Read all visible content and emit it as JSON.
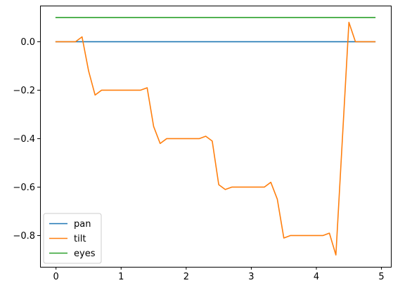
{
  "chart_data": {
    "type": "line",
    "title": "",
    "xlabel": "",
    "ylabel": "",
    "xlim": [
      -0.245,
      5.145
    ],
    "ylim": [
      -0.929,
      0.149
    ],
    "xticks": [
      0,
      1,
      2,
      3,
      4,
      5
    ],
    "xtick_labels": [
      "0",
      "1",
      "2",
      "3",
      "4",
      "5"
    ],
    "yticks": [
      0.0,
      -0.2,
      -0.4,
      -0.6,
      -0.8
    ],
    "ytick_labels": [
      "0.0",
      "−0.2",
      "−0.4",
      "−0.6",
      "−0.8"
    ],
    "grid": false,
    "legend_position": "lower-left",
    "x": [
      0.0,
      0.1,
      0.2,
      0.3,
      0.4,
      0.5,
      0.6,
      0.7,
      0.8,
      0.9,
      1.0,
      1.1,
      1.2,
      1.3,
      1.4,
      1.5,
      1.6,
      1.7,
      1.8,
      1.9,
      2.0,
      2.1,
      2.2,
      2.3,
      2.4,
      2.5,
      2.6,
      2.7,
      2.8,
      2.9,
      3.0,
      3.1,
      3.2,
      3.3,
      3.4,
      3.5,
      3.6,
      3.7,
      3.8,
      3.9,
      4.0,
      4.1,
      4.2,
      4.3,
      4.4,
      4.5,
      4.6,
      4.7,
      4.8,
      4.9
    ],
    "series": [
      {
        "name": "pan",
        "color": "#1f77b4",
        "values": [
          0,
          0,
          0,
          0,
          0,
          0,
          0,
          0,
          0,
          0,
          0,
          0,
          0,
          0,
          0,
          0,
          0,
          0,
          0,
          0,
          0,
          0,
          0,
          0,
          0,
          0,
          0,
          0,
          0,
          0,
          0,
          0,
          0,
          0,
          0,
          0,
          0,
          0,
          0,
          0,
          0,
          0,
          0,
          0,
          0,
          0,
          0,
          0,
          0,
          0
        ]
      },
      {
        "name": "tilt",
        "color": "#ff7f0e",
        "values": [
          0.0,
          0.0,
          0.0,
          0.0,
          0.02,
          -0.12,
          -0.22,
          -0.2,
          -0.2,
          -0.2,
          -0.2,
          -0.2,
          -0.2,
          -0.2,
          -0.19,
          -0.35,
          -0.42,
          -0.4,
          -0.4,
          -0.4,
          -0.4,
          -0.4,
          -0.4,
          -0.39,
          -0.41,
          -0.59,
          -0.61,
          -0.6,
          -0.6,
          -0.6,
          -0.6,
          -0.6,
          -0.6,
          -0.58,
          -0.65,
          -0.81,
          -0.8,
          -0.8,
          -0.8,
          -0.8,
          -0.8,
          -0.8,
          -0.79,
          -0.88,
          -0.4,
          0.08,
          0.0,
          0.0,
          0.0,
          0.0
        ]
      },
      {
        "name": "eyes",
        "color": "#2ca02c",
        "values": [
          0.1,
          0.1,
          0.1,
          0.1,
          0.1,
          0.1,
          0.1,
          0.1,
          0.1,
          0.1,
          0.1,
          0.1,
          0.1,
          0.1,
          0.1,
          0.1,
          0.1,
          0.1,
          0.1,
          0.1,
          0.1,
          0.1,
          0.1,
          0.1,
          0.1,
          0.1,
          0.1,
          0.1,
          0.1,
          0.1,
          0.1,
          0.1,
          0.1,
          0.1,
          0.1,
          0.1,
          0.1,
          0.1,
          0.1,
          0.1,
          0.1,
          0.1,
          0.1,
          0.1,
          0.1,
          0.1,
          0.1,
          0.1,
          0.1,
          0.1
        ]
      }
    ]
  }
}
